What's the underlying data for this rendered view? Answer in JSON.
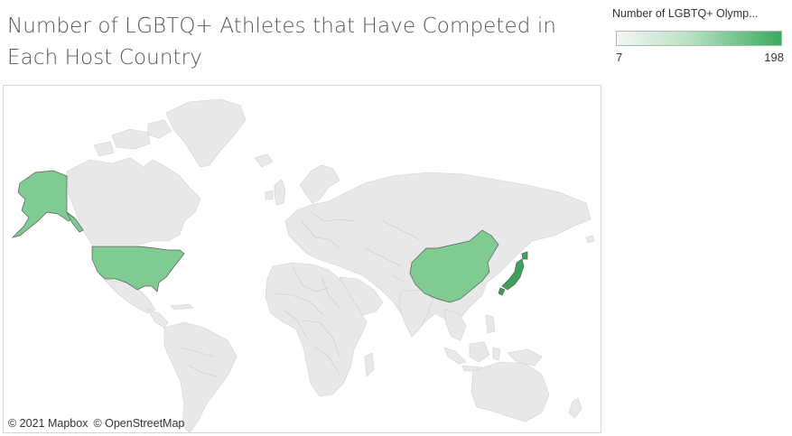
{
  "title": "Number of LGBTQ+ Athletes that Have Competed in Each Host Country",
  "legend": {
    "title": "Number of LGBTQ+ Olymp...",
    "min_label": "7",
    "max_label": "198",
    "min": 7,
    "max": 198,
    "color_low": "#f2f7f3",
    "color_high": "#3aab5c"
  },
  "map": {
    "land_color": "#e8e8e8",
    "border_color": "#c4c4c4",
    "highlighted_countries": [
      {
        "name": "United States",
        "color": "#7fcb92"
      },
      {
        "name": "China",
        "color": "#7fcb92"
      },
      {
        "name": "Japan",
        "color": "#3aa55a"
      }
    ]
  },
  "attribution": {
    "mapbox": "© 2021 Mapbox",
    "osm": "© OpenStreetMap"
  }
}
